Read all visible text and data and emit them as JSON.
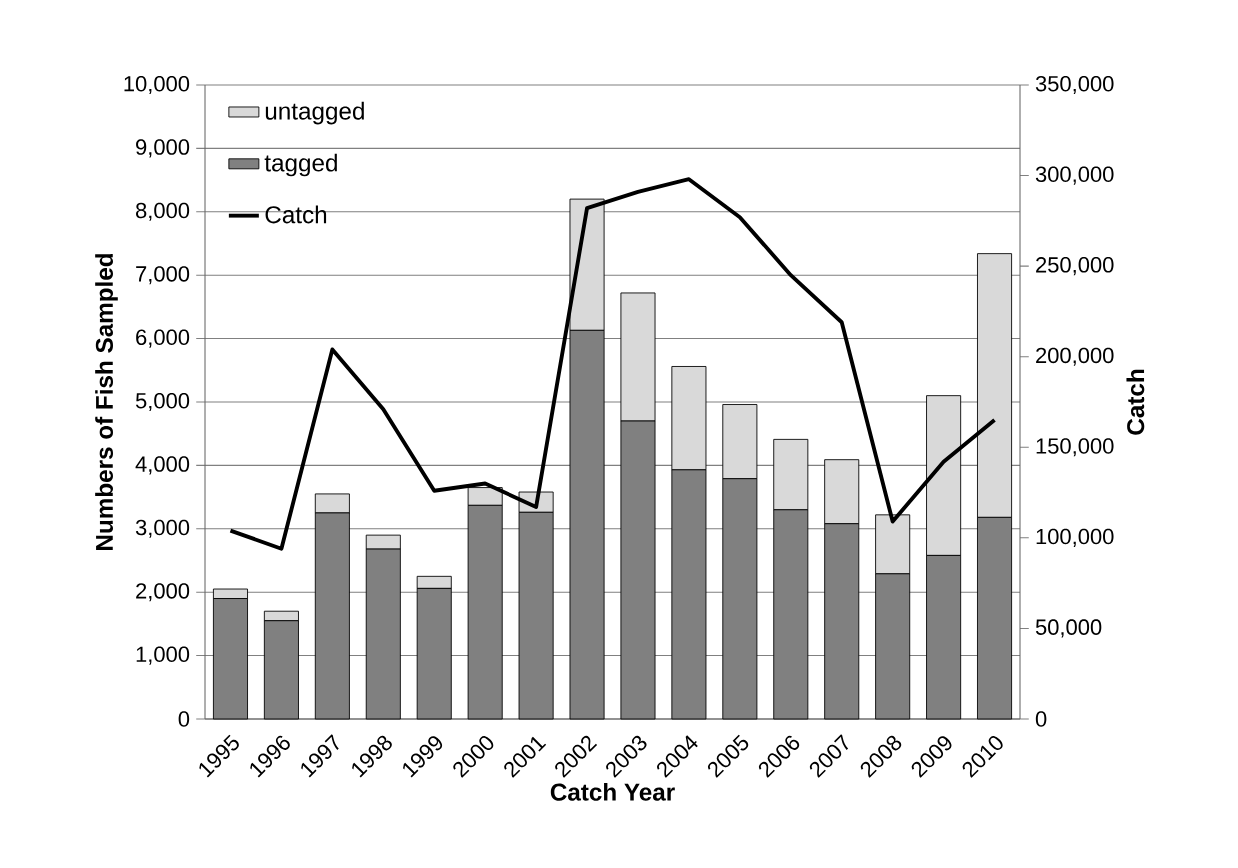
{
  "chart_data": {
    "type": "bar",
    "stacked": true,
    "xlabel": "Catch Year",
    "ylabel": "Numbers of Fish Sampled",
    "y2label": "Catch",
    "categories": [
      "1995",
      "1996",
      "1997",
      "1998",
      "1999",
      "2000",
      "2001",
      "2002",
      "2003",
      "2004",
      "2005",
      "2006",
      "2007",
      "2008",
      "2009",
      "2010"
    ],
    "series": [
      {
        "name": "tagged",
        "color": "#808080",
        "values": [
          1900,
          1550,
          3250,
          2680,
          2060,
          3370,
          3260,
          6130,
          4700,
          3930,
          3790,
          3300,
          3080,
          2290,
          2580,
          3180
        ]
      },
      {
        "name": "untagged",
        "color": "#d9d9d9",
        "values": [
          150,
          150,
          300,
          220,
          190,
          280,
          320,
          2070,
          2020,
          1630,
          1170,
          1110,
          1010,
          930,
          2520,
          4160
        ]
      },
      {
        "name": "Catch",
        "type": "line",
        "axis": "y2",
        "color": "#000000",
        "values": [
          104000,
          94000,
          204000,
          171000,
          126000,
          130000,
          117000,
          282000,
          291000,
          298000,
          277000,
          245000,
          219000,
          109000,
          142000,
          165000
        ]
      }
    ],
    "ylim": [
      0,
      10000
    ],
    "yticks": [
      0,
      {
        "value": 1000,
        "label": "1,000"
      },
      {
        "value": 2000,
        "label": "2,000"
      },
      {
        "value": 3000,
        "label": "3,000"
      },
      {
        "value": 4000,
        "label": "4,000"
      },
      {
        "value": 5000,
        "label": "5,000"
      },
      {
        "value": 6000,
        "label": "6,000"
      },
      {
        "value": 7000,
        "label": "7,000"
      },
      {
        "value": 8000,
        "label": "8,000"
      },
      {
        "value": 9000,
        "label": "9,000"
      },
      {
        "value": 10000,
        "label": "10,000"
      }
    ],
    "y2lim": [
      0,
      350000
    ],
    "y2ticks": [
      0,
      {
        "value": 50000,
        "label": "50,000"
      },
      {
        "value": 100000,
        "label": "100,000"
      },
      {
        "value": 150000,
        "label": "150,000"
      },
      {
        "value": 200000,
        "label": "200,000"
      },
      {
        "value": 250000,
        "label": "250,000"
      },
      {
        "value": 300000,
        "label": "300,000"
      },
      {
        "value": 350000,
        "label": "350,000"
      }
    ],
    "grid": "y",
    "legend": "top left"
  }
}
